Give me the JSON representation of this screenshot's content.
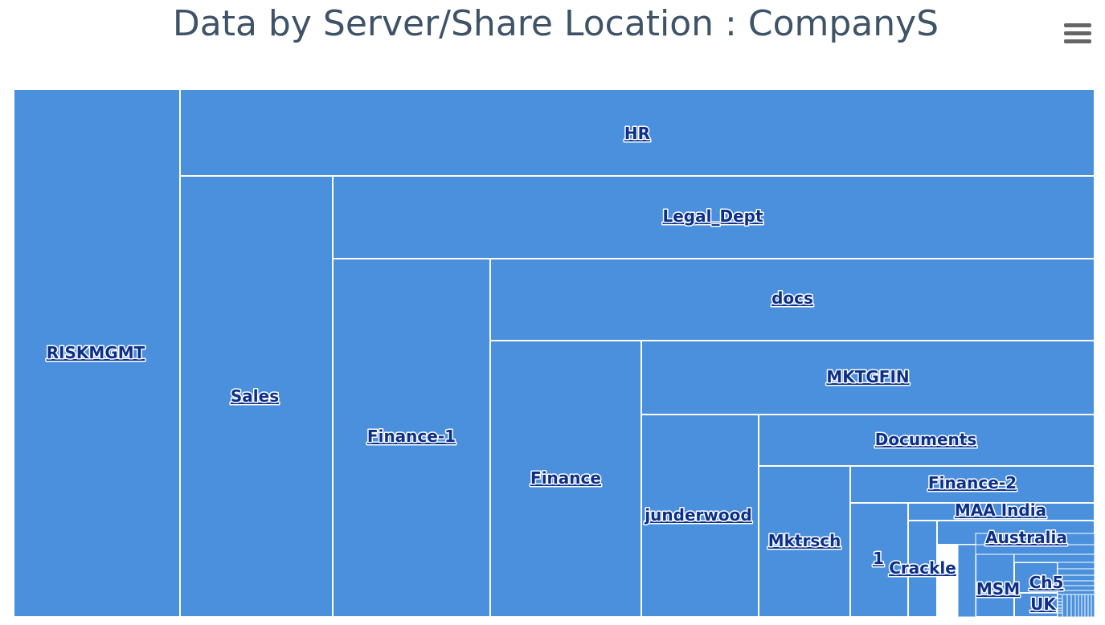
{
  "header": {
    "menu_icon": "hamburger-menu-icon"
  },
  "colors": {
    "cell": "#4a90dd",
    "label": "#0c2f8a",
    "title": "#3e5368",
    "menu": "#666666",
    "border": "#ffffff"
  },
  "chart_data": {
    "type": "treemap",
    "title": "Data by Server/Share Location : CompanyS",
    "nodes": [
      {
        "name": "RISKMGMT"
      },
      {
        "name": "HR"
      },
      {
        "name": "Sales"
      },
      {
        "name": "Legal_Dept"
      },
      {
        "name": "Finance-1"
      },
      {
        "name": "docs"
      },
      {
        "name": "Finance"
      },
      {
        "name": "MKTGFIN"
      },
      {
        "name": "junderwood"
      },
      {
        "name": "Documents"
      },
      {
        "name": "Mktrsch"
      },
      {
        "name": "Finance-2"
      },
      {
        "name": "1"
      },
      {
        "name": "MAA India"
      },
      {
        "name": "Crackle"
      },
      {
        "name": "Australia"
      },
      {
        "name": "MSM"
      },
      {
        "name": "Ch5"
      },
      {
        "name": "UK"
      }
    ]
  }
}
